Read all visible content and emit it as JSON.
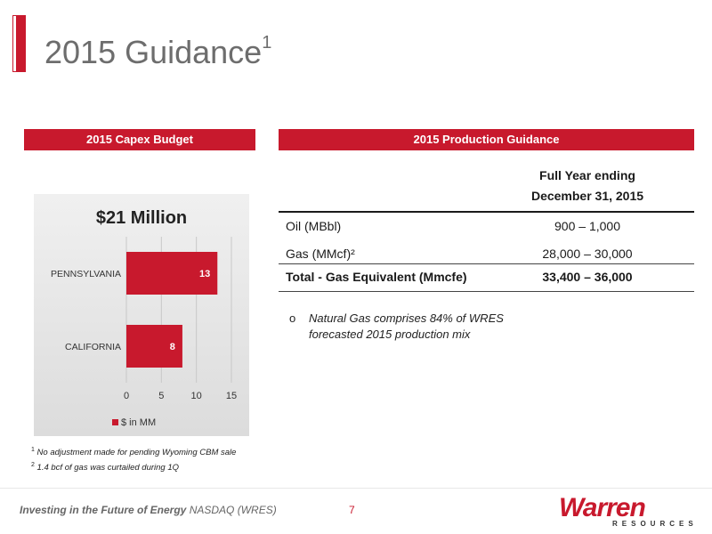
{
  "slide": {
    "title": "2015 Guidance",
    "title_sup": "1"
  },
  "capex": {
    "header": "2015 Capex Budget"
  },
  "production": {
    "header": "2015 Production Guidance",
    "column_header_line1": "Full Year ending",
    "column_header_line2": "December 31, 2015",
    "rows": [
      {
        "label": "Oil (MBbl)",
        "value": "900 – 1,000"
      },
      {
        "label": "Gas (MMcf)²",
        "value": "28,000 – 30,000"
      },
      {
        "label": "Total - Gas Equivalent (Mmcfe)",
        "value": "33,400 – 36,000"
      }
    ],
    "note_bullet": "o",
    "note": "Natural Gas comprises 84% of WRES forecasted 2015 production mix"
  },
  "footnotes": [
    {
      "sup": "1",
      "text": " No adjustment made for pending Wyoming CBM sale"
    },
    {
      "sup": "2",
      "text": " 1.4 bcf of gas was curtailed during 1Q"
    }
  ],
  "footer": {
    "tagline": "Investing in the Future of Energy",
    "nasdaq": "NASDAQ (WRES)",
    "page_number": "7",
    "logo_word": "Warren",
    "logo_sub": "RESOURCES"
  },
  "colors": {
    "accent": "#c8192d",
    "bar": "#c8192d"
  },
  "chart_data": {
    "type": "bar",
    "orientation": "horizontal",
    "title": "$21 Million",
    "categories": [
      "CALIFORNIA",
      "PENNSYLVANIA"
    ],
    "series": [
      {
        "name": "$ in MM",
        "values": [
          8,
          13
        ]
      }
    ],
    "data_labels": [
      "8",
      "13"
    ],
    "xlim": [
      0,
      15
    ],
    "xticks": [
      "0",
      "5",
      "10",
      "15"
    ],
    "grid": true,
    "legend_position": "bottom"
  }
}
